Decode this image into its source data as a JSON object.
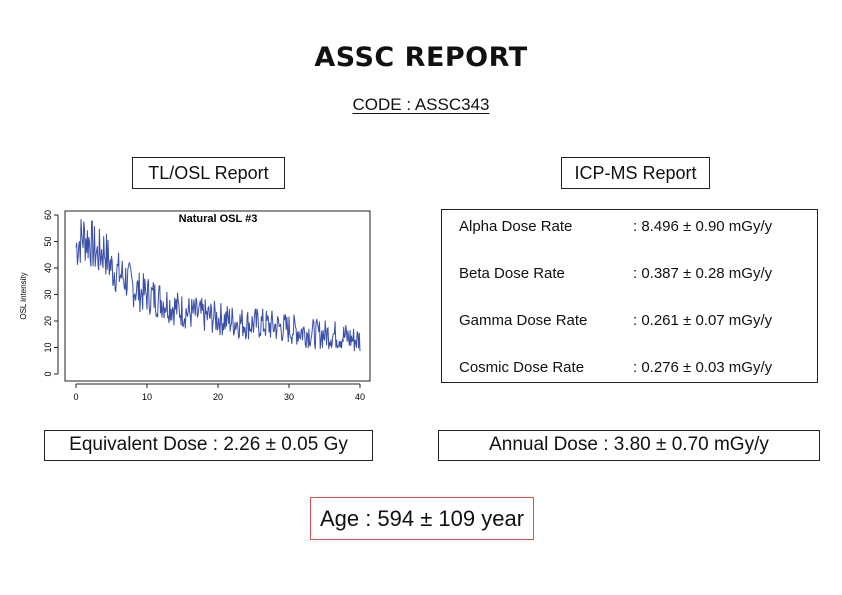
{
  "report": {
    "title": "ASSC REPORT",
    "code": "CODE : ASSC343"
  },
  "tl_osl": {
    "label": "TL/OSL Report"
  },
  "icp_ms": {
    "label": "ICP-MS Report",
    "rows": [
      {
        "label": "Alpha Dose Rate",
        "value": ": 8.496 ± 0.90 mGy/y"
      },
      {
        "label": "Beta Dose Rate",
        "value": ": 0.387 ± 0.28 mGy/y"
      },
      {
        "label": "Gamma Dose Rate",
        "value": ": 0.261 ± 0.07 mGy/y"
      },
      {
        "label": "Cosmic Dose Rate",
        "value": ": 0.276 ± 0.03 mGy/y"
      }
    ]
  },
  "results": {
    "equivalent_dose": "Equivalent Dose : 2.26 ± 0.05 Gy",
    "annual_dose": "Annual Dose : 3.80 ± 0.70 mGy/y",
    "age": "Age : 594 ± 109 year"
  },
  "colors": {
    "series": "#3a4fa8",
    "age_border": "#d9534f"
  },
  "chart_data": {
    "type": "line",
    "title": "Natural OSL #3",
    "xlabel": "",
    "ylabel": "OSL intensity",
    "xlim": [
      0,
      40
    ],
    "ylim": [
      0,
      60
    ],
    "xticks": [
      "0",
      "10",
      "20",
      "30",
      "40"
    ],
    "yticks": [
      "0",
      "10",
      "20",
      "30",
      "40",
      "50",
      "60"
    ],
    "grid": false,
    "series": [
      {
        "values_x": [
          0,
          1,
          2,
          3,
          4,
          5,
          6,
          7,
          8,
          9,
          10,
          12,
          14,
          16,
          18,
          20,
          22,
          24,
          26,
          28,
          30,
          32,
          34,
          36,
          38,
          39,
          40
        ],
        "values_y": [
          48,
          52,
          50,
          45,
          47,
          40,
          38,
          36,
          33,
          31,
          30,
          28,
          25,
          23,
          22,
          21,
          20,
          19,
          19,
          18,
          17,
          16,
          15,
          15,
          14,
          13,
          13
        ]
      }
    ]
  }
}
